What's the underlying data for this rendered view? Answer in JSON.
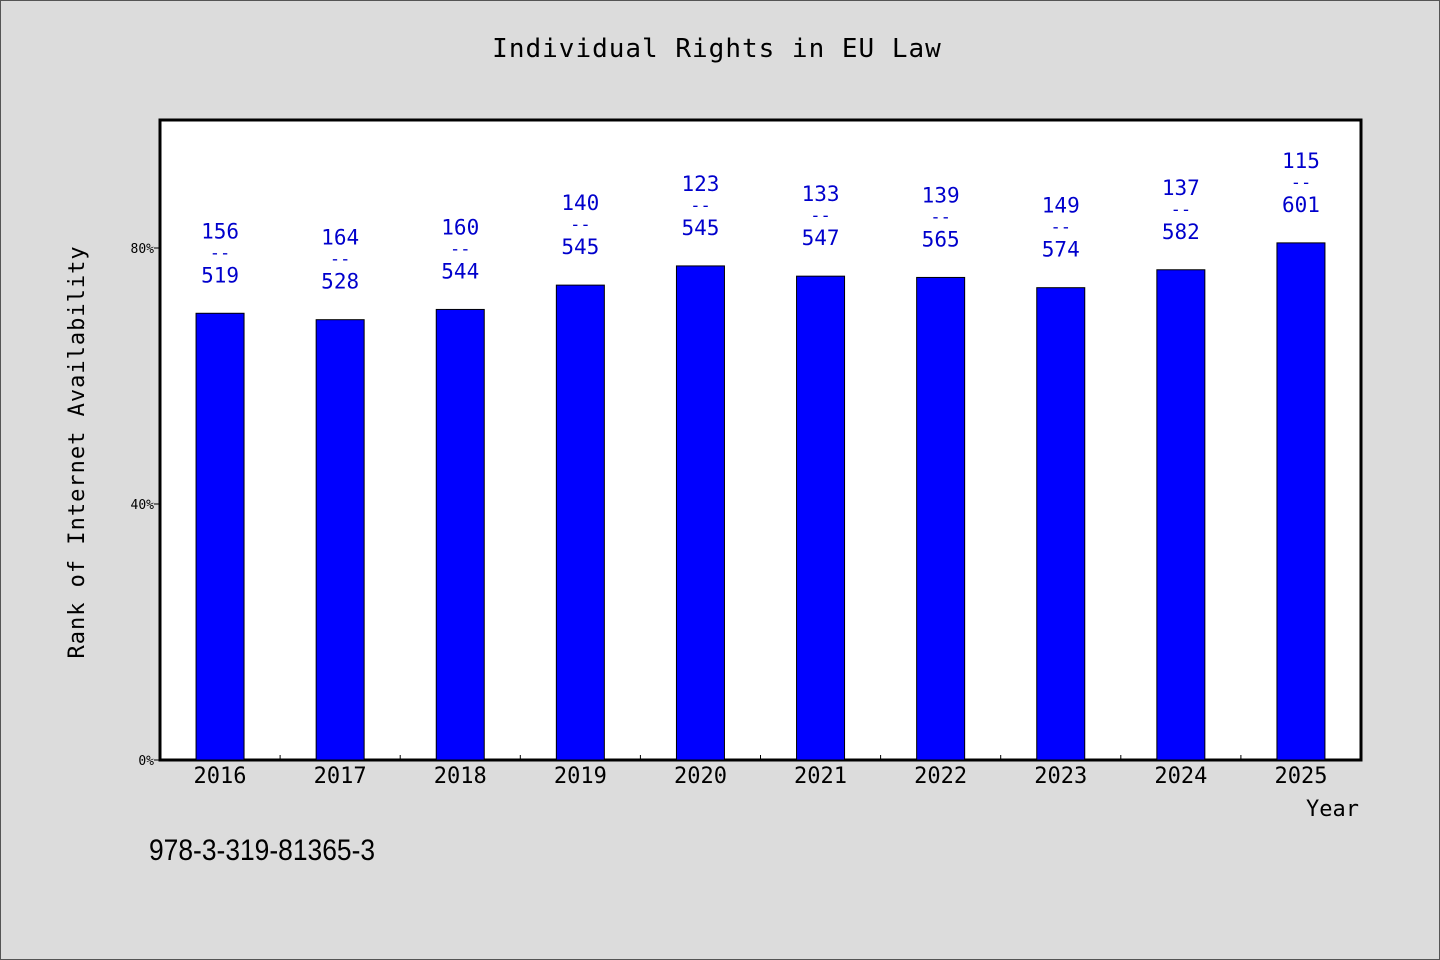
{
  "chart_data": {
    "type": "bar",
    "title": "Individual Rights in EU Law",
    "xlabel": "Year",
    "ylabel": "Rank of Internet Availability",
    "categories": [
      "2016",
      "2017",
      "2018",
      "2019",
      "2020",
      "2021",
      "2022",
      "2023",
      "2024",
      "2025"
    ],
    "values": [
      69.8,
      68.8,
      70.4,
      74.2,
      77.2,
      75.6,
      75.4,
      73.8,
      76.6,
      80.8
    ],
    "value_unit": "%",
    "ylim": [
      0,
      100
    ],
    "yticks": [
      0,
      40,
      80
    ],
    "ytick_labels": [
      "0%",
      "40%",
      "80%"
    ],
    "bar_labels": [
      {
        "top": "156",
        "sep": "--",
        "bottom": "519"
      },
      {
        "top": "164",
        "sep": "--",
        "bottom": "528"
      },
      {
        "top": "160",
        "sep": "--",
        "bottom": "544"
      },
      {
        "top": "140",
        "sep": "--",
        "bottom": "545"
      },
      {
        "top": "123",
        "sep": "--",
        "bottom": "545"
      },
      {
        "top": "133",
        "sep": "--",
        "bottom": "547"
      },
      {
        "top": "139",
        "sep": "--",
        "bottom": "565"
      },
      {
        "top": "149",
        "sep": "--",
        "bottom": "574"
      },
      {
        "top": "137",
        "sep": "--",
        "bottom": "582"
      },
      {
        "top": "115",
        "sep": "--",
        "bottom": "601"
      }
    ],
    "grid": false,
    "colors": {
      "bar": "#0000ff",
      "bar_label": "#0000cc",
      "plot_bg": "#ffffff",
      "page_bg": "#dcdcdc"
    }
  },
  "footer": {
    "isbn": "978-3-319-81365-3"
  }
}
